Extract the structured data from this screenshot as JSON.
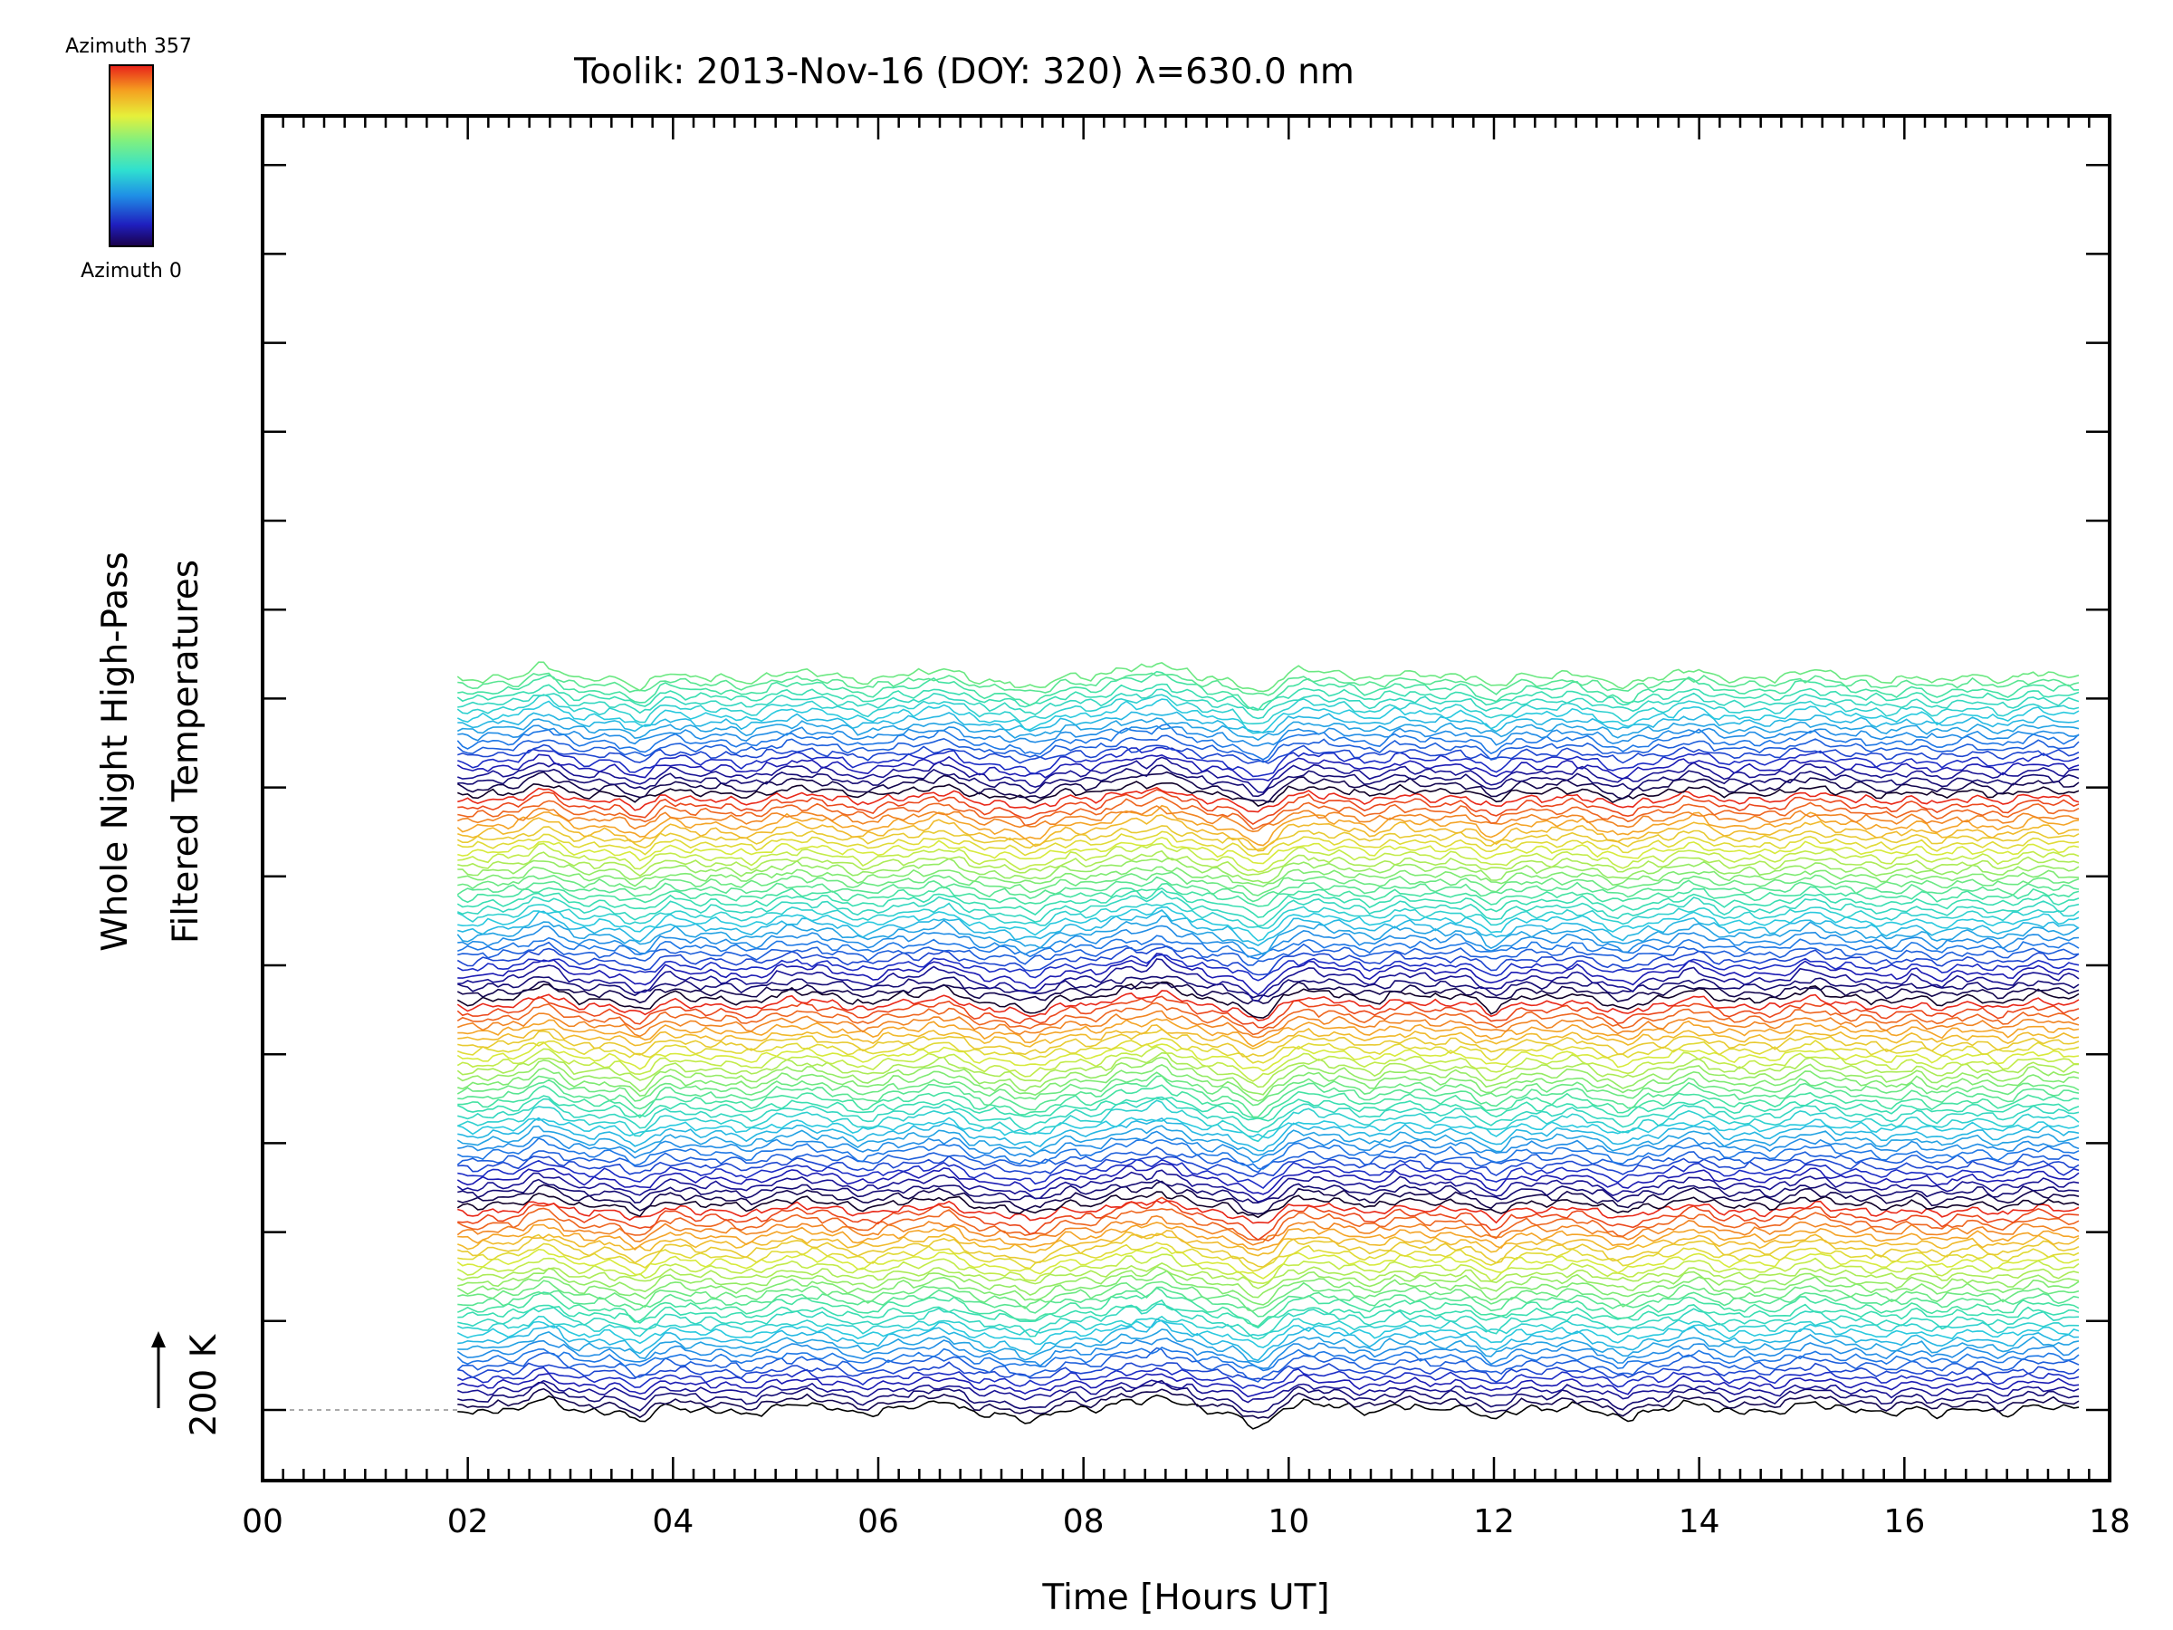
{
  "chart_data": {
    "type": "line",
    "title": "Toolik: 2013-Nov-16 (DOY: 320) λ=630.0 nm",
    "xlabel": "Time [Hours UT]",
    "ylabel_line1": "Whole Night High-Pass",
    "ylabel_line2": "Filtered Temperatures",
    "xlim": [
      0,
      18
    ],
    "xticks": [
      "00",
      "02",
      "04",
      "06",
      "08",
      "10",
      "12",
      "14",
      "16",
      "18"
    ],
    "x_range_data": [
      1.9,
      17.7
    ],
    "scale_bar_label": "200 K",
    "colorbar": {
      "top_label": "Azimuth 357",
      "bottom_label": "Azimuth 0",
      "colormap": "rainbow"
    },
    "series_count": 115,
    "azimuth_cycle_length": 32,
    "colors": {
      "background": "#ffffff",
      "axes": "#000000",
      "baseline": "#aaaaaa"
    }
  }
}
